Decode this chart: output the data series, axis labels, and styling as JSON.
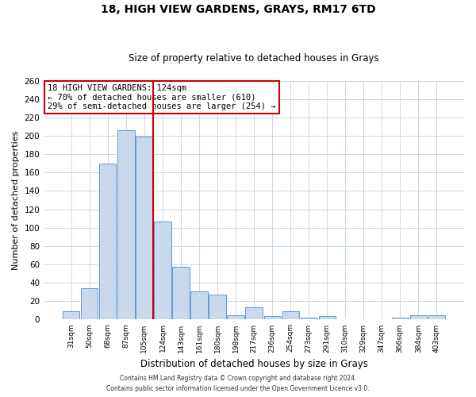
{
  "title": "18, HIGH VIEW GARDENS, GRAYS, RM17 6TD",
  "subtitle": "Size of property relative to detached houses in Grays",
  "xlabel": "Distribution of detached houses by size in Grays",
  "ylabel": "Number of detached properties",
  "bar_labels": [
    "31sqm",
    "50sqm",
    "68sqm",
    "87sqm",
    "105sqm",
    "124sqm",
    "143sqm",
    "161sqm",
    "180sqm",
    "198sqm",
    "217sqm",
    "236sqm",
    "254sqm",
    "273sqm",
    "291sqm",
    "310sqm",
    "329sqm",
    "347sqm",
    "366sqm",
    "384sqm",
    "403sqm"
  ],
  "bar_values": [
    9,
    34,
    170,
    206,
    199,
    107,
    57,
    31,
    27,
    5,
    13,
    4,
    9,
    2,
    4,
    0,
    0,
    0,
    2,
    5,
    5
  ],
  "bar_color": "#c8d9ee",
  "bar_edge_color": "#5b9bd5",
  "vline_color": "#cc0000",
  "vline_position": 4.5,
  "annotation_title": "18 HIGH VIEW GARDENS: 124sqm",
  "annotation_line1": "← 70% of detached houses are smaller (610)",
  "annotation_line2": "29% of semi-detached houses are larger (254) →",
  "annotation_box_color": "#cc0000",
  "ylim": [
    0,
    260
  ],
  "yticks": [
    0,
    20,
    40,
    60,
    80,
    100,
    120,
    140,
    160,
    180,
    200,
    220,
    240,
    260
  ],
  "footer1": "Contains HM Land Registry data © Crown copyright and database right 2024.",
  "footer2": "Contains public sector information licensed under the Open Government Licence v3.0.",
  "bg_color": "#ffffff",
  "grid_color": "#c8d8e8"
}
